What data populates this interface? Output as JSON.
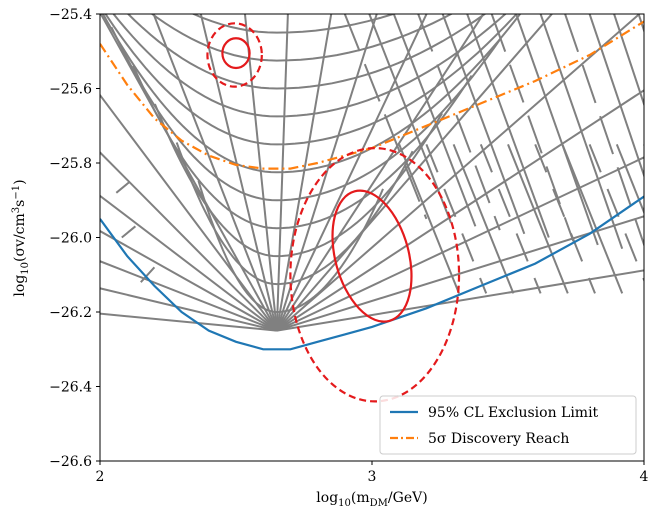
{
  "chart_data": {
    "type": "line",
    "xlabel": "log₁₀(m_DM/GeV)",
    "ylabel": "log₁₀(σv/cm³s⁻¹)",
    "xlim": [
      2,
      4
    ],
    "ylim": [
      -26.6,
      -25.4
    ],
    "xticks": [
      2,
      3,
      4
    ],
    "xtick_labels": [
      "2",
      "3",
      "4"
    ],
    "yticks": [
      -26.6,
      -26.4,
      -26.2,
      -26.0,
      -25.8,
      -25.6,
      -25.4
    ],
    "ytick_labels": [
      "−26.6",
      "−26.4",
      "−26.2",
      "−26.0",
      "−25.8",
      "−25.6",
      "−25.4"
    ],
    "legend_position": "lower-right",
    "series": [
      {
        "name": "95% CL Exclusion Limit",
        "color": "#1f77b4",
        "style": "solid",
        "x": [
          2.0,
          2.1,
          2.2,
          2.3,
          2.4,
          2.5,
          2.6,
          2.7,
          2.8,
          2.9,
          3.0,
          3.2,
          3.4,
          3.6,
          3.8,
          4.0
        ],
        "y": [
          -25.95,
          -26.05,
          -26.13,
          -26.2,
          -26.25,
          -26.28,
          -26.3,
          -26.3,
          -26.28,
          -26.26,
          -26.24,
          -26.19,
          -26.13,
          -26.07,
          -25.99,
          -25.89
        ]
      },
      {
        "name": "5σ Discovery Reach",
        "color": "#ff7f0e",
        "style": "dashdot",
        "x": [
          2.0,
          2.1,
          2.2,
          2.3,
          2.4,
          2.5,
          2.6,
          2.7,
          2.8,
          2.9,
          3.0,
          3.2,
          3.4,
          3.6,
          3.8,
          4.0
        ],
        "y": [
          -25.48,
          -25.59,
          -25.68,
          -25.74,
          -25.78,
          -25.805,
          -25.815,
          -25.815,
          -25.8,
          -25.78,
          -25.76,
          -25.7,
          -25.64,
          -25.58,
          -25.51,
          -25.42
        ]
      }
    ],
    "contours": [
      {
        "color": "#e41a1c",
        "style": "solid",
        "cx": 2.5,
        "cy": -25.505,
        "rx": 0.05,
        "ry": 0.04,
        "angle": 0
      },
      {
        "color": "#e41a1c",
        "style": "dashed",
        "cx": 2.495,
        "cy": -25.51,
        "rx": 0.1,
        "ry": 0.085,
        "angle": 0
      },
      {
        "color": "#e41a1c",
        "style": "solid",
        "cx": 3.0,
        "cy": -26.05,
        "rx": 0.135,
        "ry": 0.18,
        "angle": -15
      },
      {
        "color": "#e41a1c",
        "style": "dashed",
        "cx": 3.01,
        "cy": -26.1,
        "rx": 0.31,
        "ry": 0.34,
        "angle": 0
      }
    ],
    "grid_lines": {
      "color": "#808080",
      "description_free": true
    }
  }
}
